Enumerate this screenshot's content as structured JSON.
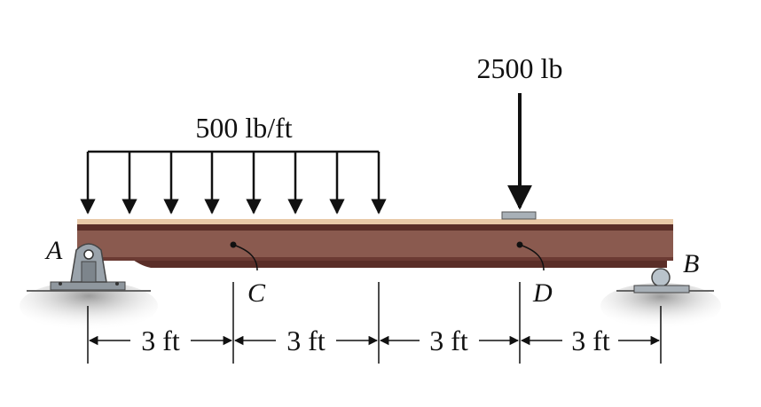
{
  "loads": {
    "distributed_label": "500 lb/ft",
    "point_label": "2500 lb"
  },
  "points": {
    "A": "A",
    "B": "B",
    "C": "C",
    "D": "D"
  },
  "dimensions": [
    "3 ft",
    "3 ft",
    "3 ft",
    "3 ft"
  ],
  "colors": {
    "beam_web": "#8a5a4f",
    "beam_flange": "#5a2e28",
    "beam_highlight": "#e8c9a8",
    "support_metal": "#9aa3ab",
    "ground": "#c9c9c9"
  }
}
